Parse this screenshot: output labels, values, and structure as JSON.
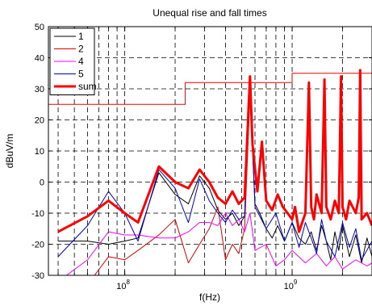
{
  "chart_data": {
    "type": "line",
    "title": "Unequal rise and fall times",
    "xlabel": "f(Hz)",
    "ylabel": "dBuV/m",
    "xscale": "log",
    "xlim": [
      35000000,
      3000000000
    ],
    "ylim": [
      -30,
      50
    ],
    "yticks": [
      -30,
      -20,
      -10,
      0,
      10,
      20,
      30,
      40,
      50
    ],
    "xtick_major": [
      {
        "value": 100000000,
        "base": "10",
        "exp": "8"
      },
      {
        "value": 1000000000,
        "base": "10",
        "exp": "9"
      }
    ],
    "grid": true,
    "legend_position": "top-left",
    "limit_line": {
      "color": "#ee0000",
      "x": [
        35000000,
        230000000,
        230000000,
        1000000000,
        1000000000,
        3000000000
      ],
      "y": [
        25,
        25,
        32,
        32,
        35,
        35
      ]
    },
    "series": [
      {
        "name": "1",
        "color": "#000000",
        "width": 1,
        "x": [
          40000000,
          60000000,
          80000000,
          100000000,
          120000000,
          160000000,
          200000000,
          240000000,
          280000000,
          320000000,
          360000000,
          400000000,
          440000000,
          480000000,
          520000000,
          560000000,
          600000000,
          640000000,
          700000000,
          760000000,
          820000000,
          900000000,
          1000000000,
          1100000000,
          1200000000,
          1300000000,
          1400000000,
          1500000000,
          1600000000,
          1700000000,
          1800000000,
          1900000000,
          2000000000,
          2200000000,
          2400000000,
          2600000000,
          2800000000,
          3000000000
        ],
        "y": [
          -19,
          -19,
          -20,
          -19,
          -18,
          3,
          -4,
          -7,
          2,
          -2,
          -9,
          -12,
          -10,
          -14,
          -11,
          28,
          -7,
          -10,
          -15,
          -18,
          -14,
          -19,
          -13,
          -18,
          -20,
          -16,
          -22,
          -14,
          -19,
          -25,
          -16,
          -22,
          -14,
          -24,
          -17,
          -26,
          -18,
          -24
        ]
      },
      {
        "name": "2",
        "color": "#dd0000",
        "width": 1,
        "x": [
          40000000,
          60000000,
          80000000,
          100000000,
          120000000,
          160000000,
          200000000,
          240000000,
          280000000,
          320000000,
          360000000,
          400000000,
          440000000,
          480000000,
          520000000,
          560000000
        ],
        "y": [
          -36,
          -33,
          -24,
          -25,
          -22,
          -17,
          -12,
          -26,
          -20,
          -15,
          -8,
          -25,
          -20,
          -23,
          -15,
          28
        ]
      },
      {
        "name": "4",
        "color": "#ff00ff",
        "width": 1,
        "x": [
          40000000,
          60000000,
          80000000,
          100000000,
          120000000,
          160000000,
          200000000,
          240000000,
          280000000,
          320000000,
          360000000,
          400000000,
          440000000,
          480000000,
          520000000,
          560000000,
          600000000,
          700000000,
          800000000,
          900000000,
          1000000000,
          1200000000,
          1400000000,
          1600000000,
          1800000000,
          2000000000,
          2400000000,
          2800000000,
          3000000000
        ],
        "y": [
          -32,
          -25,
          -16,
          -17,
          -17,
          -18,
          -18,
          -16,
          -13,
          -13,
          -14,
          -10,
          -14,
          -12,
          -16,
          -10,
          -22,
          -20,
          -27,
          -25,
          -22,
          -26,
          -23,
          -27,
          -24,
          -28,
          -25,
          -27,
          -26
        ]
      },
      {
        "name": "5",
        "color": "#0000cc",
        "width": 1,
        "x": [
          40000000,
          60000000,
          80000000,
          100000000,
          120000000,
          160000000,
          200000000,
          240000000,
          280000000,
          320000000,
          360000000,
          400000000,
          440000000,
          480000000,
          520000000,
          560000000,
          600000000,
          700000000,
          800000000,
          900000000,
          1000000000,
          1100000000,
          1200000000,
          1300000000,
          1400000000,
          1500000000,
          1600000000,
          1800000000,
          2000000000,
          2200000000,
          2400000000,
          2600000000,
          3000000000
        ],
        "y": [
          -24,
          -14,
          -3,
          -10,
          -19,
          4,
          -2,
          -13,
          1,
          -6,
          -10,
          -13,
          -9,
          -12,
          -11,
          32,
          -8,
          -15,
          -10,
          -19,
          -13,
          -21,
          -13,
          -18,
          -23,
          -12,
          -19,
          -24,
          -13,
          -21,
          -15,
          -25,
          -19
        ]
      },
      {
        "name": "sum",
        "color": "#ff0000",
        "width": 3,
        "x": [
          40000000,
          60000000,
          80000000,
          100000000,
          120000000,
          160000000,
          200000000,
          240000000,
          280000000,
          320000000,
          360000000,
          400000000,
          440000000,
          480000000,
          520000000,
          560000000,
          580000000,
          620000000,
          660000000,
          700000000,
          760000000,
          820000000,
          880000000,
          940000000,
          1000000000,
          1040000000,
          1100000000,
          1200000000,
          1260000000,
          1300000000,
          1350000000,
          1400000000,
          1500000000,
          1560000000,
          1600000000,
          1700000000,
          1800000000,
          1900000000,
          1960000000,
          2000000000,
          2100000000,
          2200000000,
          2400000000,
          2500000000,
          2550000000,
          2600000000,
          2800000000,
          3000000000
        ],
        "y": [
          -16,
          -11,
          -6,
          -10,
          -13,
          5,
          0,
          -2,
          4,
          0,
          -5,
          -7,
          -3,
          -7,
          -5,
          34,
          12,
          -3,
          13,
          -6,
          -9,
          -4,
          -8,
          -10,
          -12,
          -8,
          -16,
          -10,
          32,
          -8,
          -12,
          -4,
          -10,
          33,
          -8,
          -12,
          -6,
          -10,
          34,
          -8,
          -12,
          -6,
          -10,
          -5,
          36,
          -12,
          -10,
          -14
        ]
      }
    ]
  }
}
